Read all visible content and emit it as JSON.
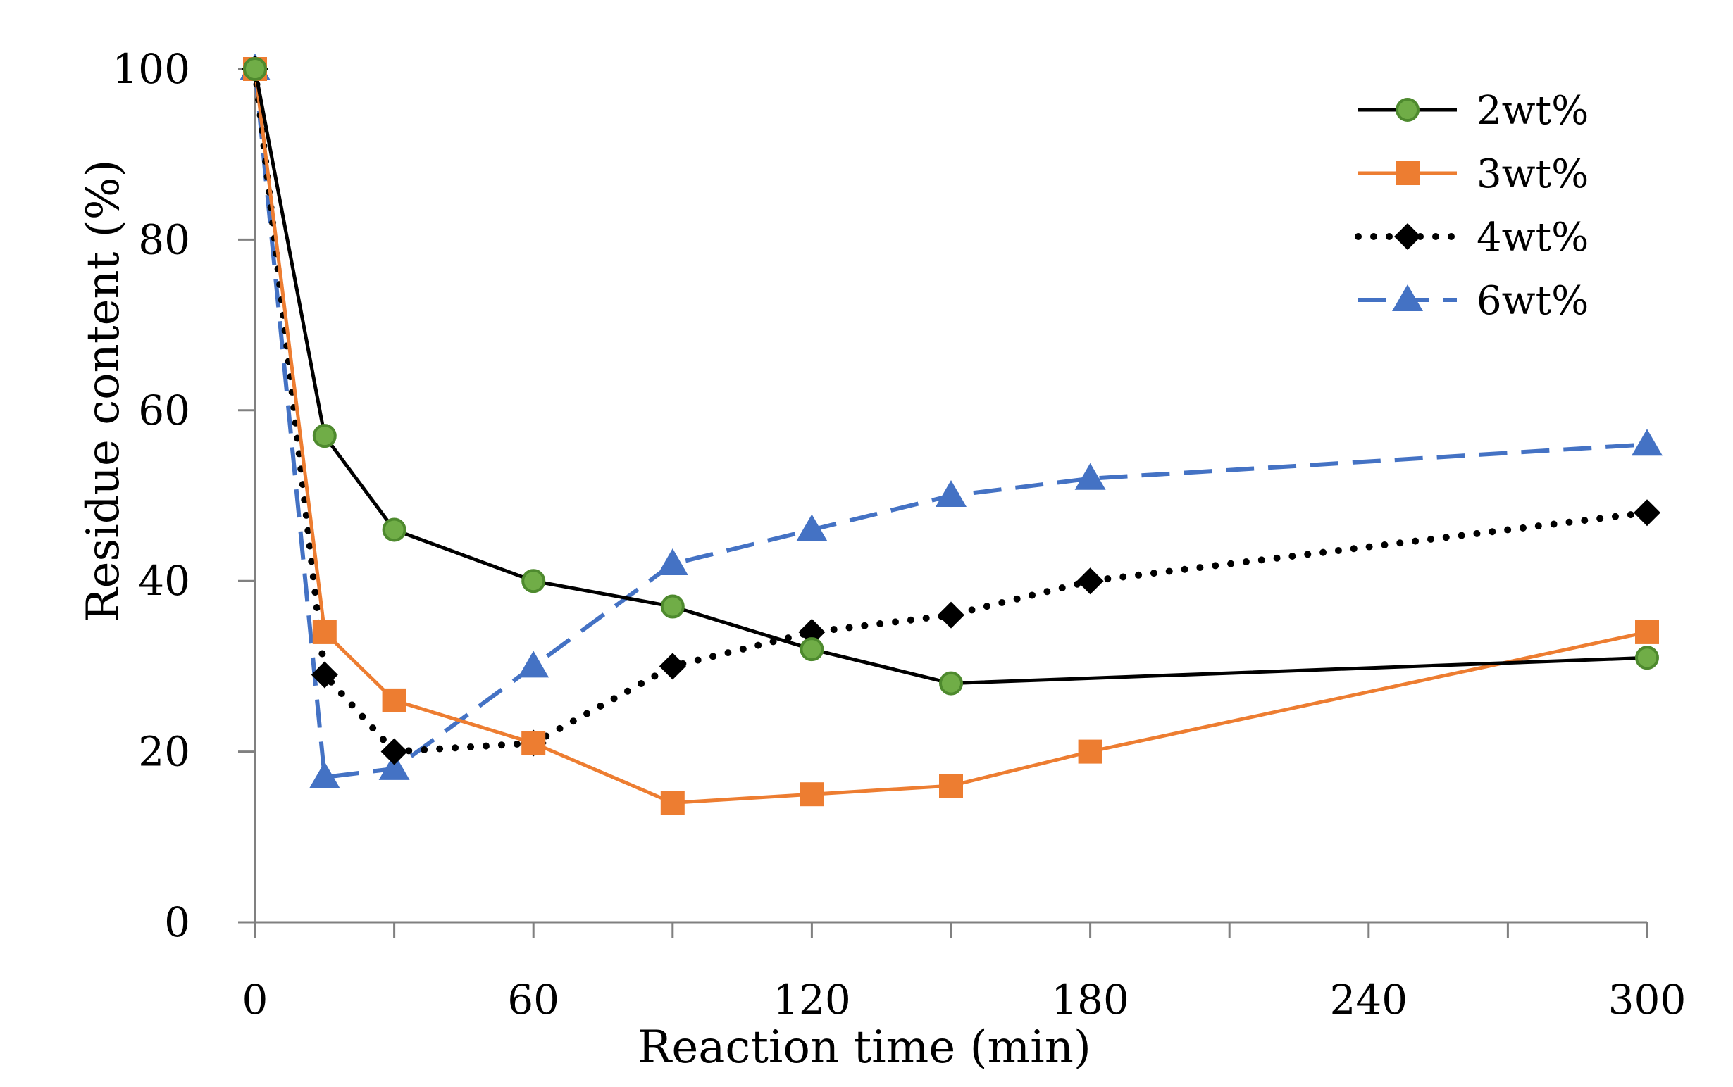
{
  "chart_data": {
    "type": "line",
    "xlabel": "Reaction time (min)",
    "ylabel": "Residue content (%)",
    "xlim": [
      0,
      300
    ],
    "ylim": [
      0,
      100
    ],
    "xticks": [
      0,
      60,
      120,
      180,
      240,
      300
    ],
    "yticks": [
      0,
      20,
      40,
      60,
      80,
      100
    ],
    "grid": false,
    "legend_position": "top-right",
    "series": [
      {
        "name": "2wt%",
        "color": "#000000",
        "marker": "circle",
        "marker_color": "#70AD47",
        "line_style": "solid",
        "x": [
          0,
          15,
          30,
          60,
          90,
          120,
          150,
          300
        ],
        "y": [
          100,
          57,
          46,
          40,
          37,
          32,
          28,
          31
        ]
      },
      {
        "name": "3wt%",
        "color": "#ED7D31",
        "marker": "square",
        "marker_color": "#ED7D31",
        "line_style": "solid",
        "x": [
          0,
          15,
          30,
          60,
          90,
          120,
          150,
          180,
          300
        ],
        "y": [
          100,
          34,
          26,
          21,
          14,
          15,
          16,
          20,
          34
        ]
      },
      {
        "name": "4wt%",
        "color": "#000000",
        "marker": "diamond",
        "marker_color": "#000000",
        "line_style": "dotted",
        "x": [
          0,
          15,
          30,
          60,
          90,
          120,
          150,
          180,
          300
        ],
        "y": [
          100,
          29,
          20,
          21,
          30,
          34,
          36,
          40,
          48
        ]
      },
      {
        "name": "6wt%",
        "color": "#4472C4",
        "marker": "triangle",
        "marker_color": "#4472C4",
        "line_style": "dashed",
        "x": [
          0,
          15,
          30,
          60,
          90,
          120,
          150,
          180,
          300
        ],
        "y": [
          100,
          17,
          18,
          30,
          42,
          46,
          50,
          52,
          56
        ]
      }
    ]
  }
}
